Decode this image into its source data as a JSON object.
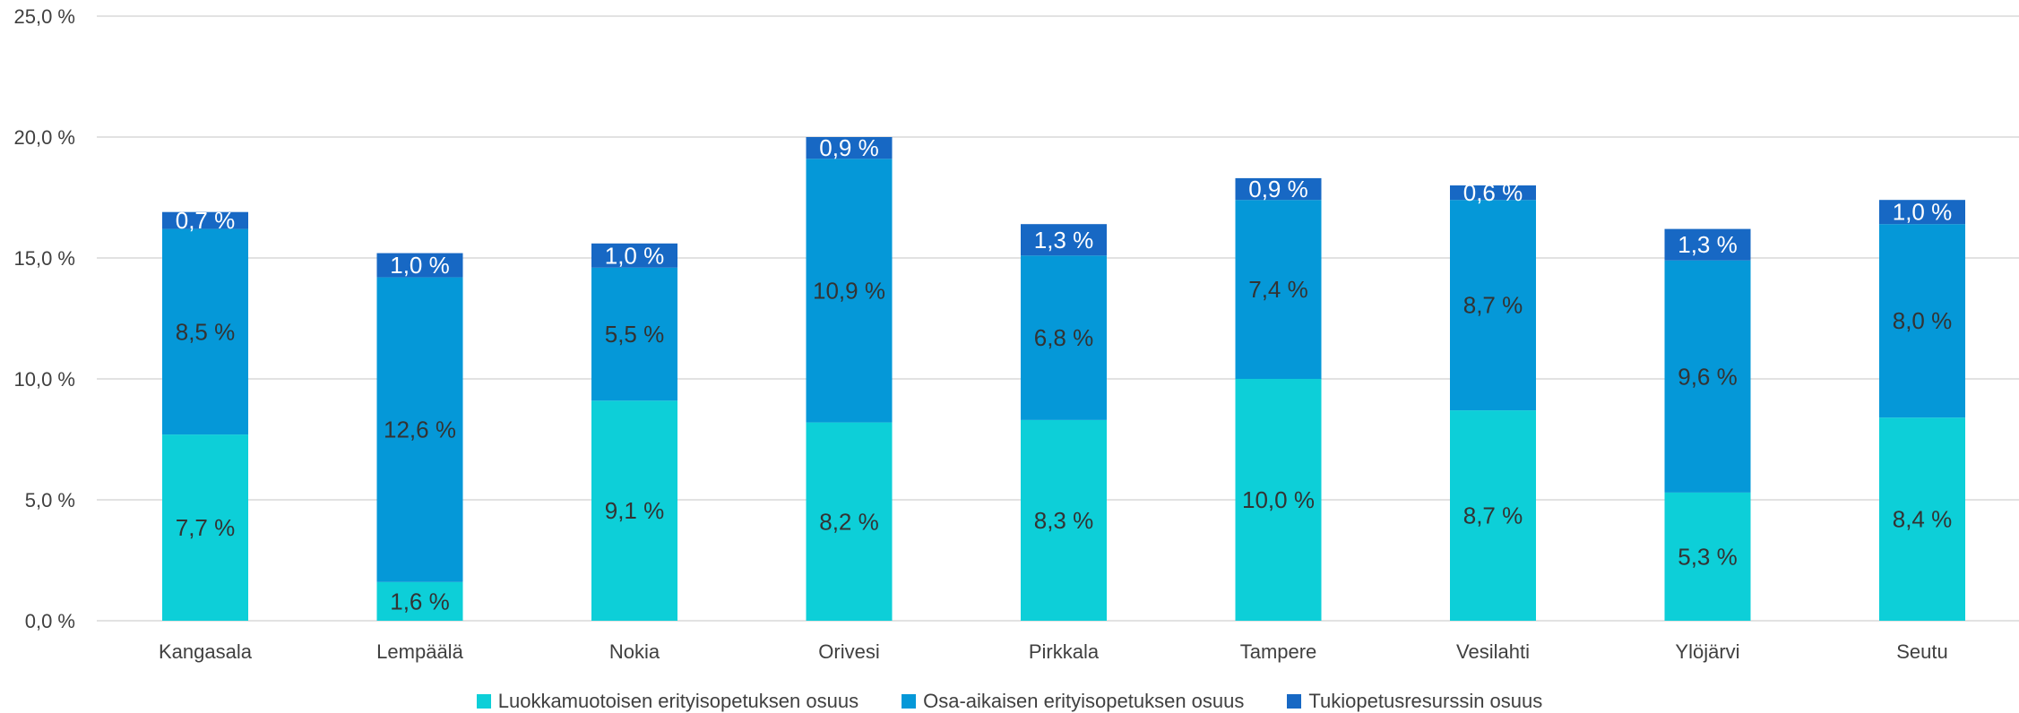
{
  "chart_data": {
    "type": "bar",
    "stacked": true,
    "categories": [
      "Kangasala",
      "Lempäälä",
      "Nokia",
      "Orivesi",
      "Pirkkala",
      "Tampere",
      "Vesilahti",
      "Ylöjärvi",
      "Seutu"
    ],
    "series": [
      {
        "name": "Luokkamuotoisen erityisopetuksen osuus",
        "color": "#0dcfd8",
        "values": [
          7.7,
          1.6,
          9.1,
          8.2,
          8.3,
          10.0,
          8.7,
          5.3,
          8.4
        ],
        "labels": [
          "7,7 %",
          "1,6 %",
          "9,1 %",
          "8,2 %",
          "8,3 %",
          "10,0 %",
          "8,7 %",
          "5,3 %",
          "8,4 %"
        ],
        "label_color": "#333333"
      },
      {
        "name": "Osa-aikaisen erityisopetuksen osuus",
        "color": "#0598d8",
        "values": [
          8.5,
          12.6,
          5.5,
          10.9,
          6.8,
          7.4,
          8.7,
          9.6,
          8.0
        ],
        "labels": [
          "8,5 %",
          "12,6 %",
          "5,5 %",
          "10,9 %",
          "6,8 %",
          "7,4 %",
          "8,7 %",
          "9,6 %",
          "8,0 %"
        ],
        "label_color": "#333333"
      },
      {
        "name": "Tukiopetusresurssin osuus",
        "color": "#1768c4",
        "values": [
          0.7,
          1.0,
          1.0,
          0.9,
          1.3,
          0.9,
          0.6,
          1.3,
          1.0
        ],
        "labels": [
          "0,7 %",
          "1,0 %",
          "1,0 %",
          "0,9 %",
          "1,3 %",
          "0,9 %",
          "0,6 %",
          "1,3 %",
          "1,0 %"
        ],
        "label_color": "#ffffff"
      }
    ],
    "ylim": [
      0,
      25
    ],
    "yticks": [
      0,
      5,
      10,
      15,
      20,
      25
    ],
    "ytick_labels": [
      "0,0 %",
      "5,0 %",
      "10,0 %",
      "15,0 %",
      "20,0 %",
      "25,0 %"
    ],
    "grid": true,
    "legend_position": "bottom",
    "title": "",
    "xlabel": "",
    "ylabel": ""
  }
}
